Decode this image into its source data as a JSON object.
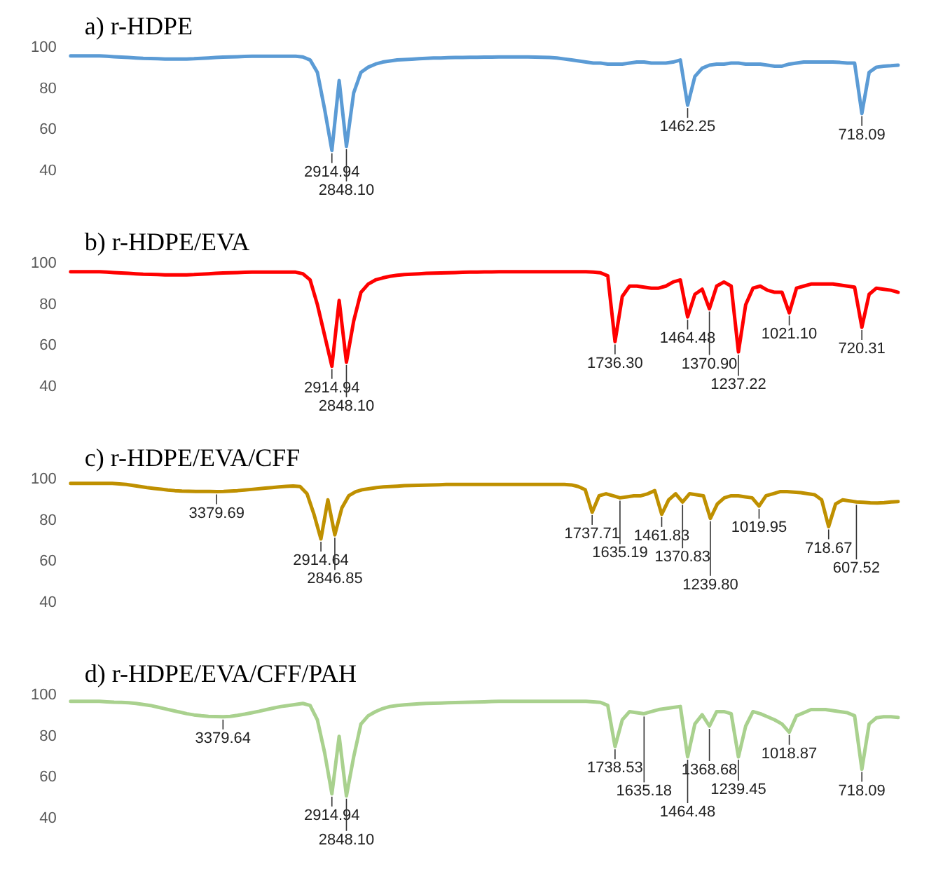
{
  "chart_data": [
    {
      "type": "line",
      "title": "a) r-HDPE",
      "ylim": [
        40,
        100
      ],
      "yticks": [
        40,
        60,
        80,
        100
      ],
      "tick_labels": "y",
      "categories": [
        null,
        null,
        null,
        null,
        null,
        null,
        null,
        null,
        null,
        null,
        null,
        null,
        null,
        null,
        null,
        null,
        null,
        null,
        null,
        null,
        null,
        null,
        null,
        null,
        null,
        null,
        null,
        null,
        null,
        null,
        null,
        null,
        null,
        null,
        null,
        null,
        null,
        null,
        null,
        null,
        null,
        null,
        null,
        null,
        null,
        null,
        null,
        null,
        null,
        null,
        null,
        null,
        null,
        null,
        null,
        null,
        null,
        null,
        null,
        null,
        null,
        null,
        null,
        null,
        null,
        null,
        null,
        null,
        null,
        null,
        null,
        null,
        null,
        null,
        null,
        null,
        null,
        null,
        null,
        null,
        null,
        null,
        null,
        null,
        null,
        null,
        null,
        null,
        null,
        null,
        null,
        null,
        null,
        null,
        null,
        null,
        null,
        null,
        null,
        null,
        null,
        null,
        null,
        null,
        null,
        null,
        null,
        null,
        null,
        null,
        null,
        null,
        null,
        null,
        null
      ],
      "series": [
        {
          "color": "#5b9bd5",
          "values": [
            96,
            96,
            96,
            96,
            96,
            95.8,
            95.6,
            95.4,
            95.2,
            95,
            94.8,
            94.7,
            94.6,
            94.5,
            94.5,
            94.5,
            94.5,
            94.6,
            94.8,
            95,
            95.2,
            95.4,
            95.5,
            95.6,
            95.7,
            95.8,
            95.8,
            95.8,
            95.8,
            95.8,
            95.8,
            95.8,
            95.5,
            94,
            88,
            70,
            50,
            84,
            52,
            78,
            88,
            90.5,
            92,
            93,
            93.5,
            94,
            94.2,
            94.4,
            94.6,
            94.8,
            95,
            95,
            95.1,
            95.2,
            95.2,
            95.3,
            95.3,
            95.4,
            95.4,
            95.5,
            95.5,
            95.5,
            95.5,
            95.5,
            95.4,
            95.3,
            95.2,
            95,
            94.5,
            94,
            93.5,
            93,
            92.5,
            92.5,
            92,
            92,
            92,
            92.5,
            93,
            93,
            92.5,
            92.5,
            92.5,
            93,
            94,
            72,
            86,
            90,
            91.5,
            92,
            92,
            92.5,
            92.5,
            92,
            92,
            92,
            91.5,
            91,
            91,
            92,
            92.5,
            93,
            93,
            93,
            93,
            93,
            92.8,
            92.5,
            92.5,
            68,
            88,
            90.5,
            91,
            91.2,
            91.5
          ]
        }
      ],
      "annotations": [
        {
          "text": "2914.94",
          "y": 50
        },
        {
          "text": "2848.10",
          "y": 52
        },
        {
          "text": "1462.25",
          "y": 72
        },
        {
          "text": "718.09",
          "y": 68
        }
      ]
    },
    {
      "type": "line",
      "title": "b) r-HDPE/EVA",
      "ylim": [
        40,
        100
      ],
      "yticks": [
        40,
        60,
        80,
        100
      ],
      "tick_labels": "y",
      "categories": [
        null,
        null,
        null,
        null,
        null,
        null,
        null,
        null,
        null,
        null,
        null,
        null,
        null,
        null,
        null,
        null,
        null,
        null,
        null,
        null,
        null,
        null,
        null,
        null,
        null,
        null,
        null,
        null,
        null,
        null,
        null,
        null,
        null,
        null,
        null,
        null,
        null,
        null,
        null,
        null,
        null,
        null,
        null,
        null,
        null,
        null,
        null,
        null,
        null,
        null,
        null,
        null,
        null,
        null,
        null,
        null,
        null,
        null,
        null,
        null,
        null,
        null,
        null,
        null,
        null,
        null,
        null,
        null,
        null,
        null,
        null,
        null,
        null,
        null,
        null,
        null,
        null,
        null,
        null,
        null,
        null,
        null,
        null,
        null,
        null,
        null,
        null,
        null,
        null,
        null,
        null,
        null,
        null,
        null,
        null,
        null,
        null,
        null,
        null,
        null,
        null,
        null,
        null,
        null,
        null,
        null,
        null,
        null,
        null,
        null,
        null,
        null,
        null,
        null,
        null
      ],
      "series": [
        {
          "color": "#ff0000",
          "values": [
            96,
            96,
            96,
            96,
            96,
            95.8,
            95.6,
            95.4,
            95.2,
            95,
            94.8,
            94.7,
            94.6,
            94.5,
            94.5,
            94.5,
            94.5,
            94.6,
            94.8,
            95,
            95.2,
            95.4,
            95.5,
            95.6,
            95.7,
            95.8,
            95.8,
            95.8,
            95.8,
            95.8,
            95.8,
            95.8,
            95,
            92,
            80,
            65,
            50,
            82,
            52,
            72,
            86,
            90,
            92,
            93,
            93.8,
            94.3,
            94.6,
            94.8,
            95,
            95.2,
            95.3,
            95.4,
            95.5,
            95.6,
            95.7,
            95.8,
            95.8,
            95.9,
            95.9,
            96,
            96,
            96,
            96,
            96,
            96,
            96,
            96,
            96,
            96,
            96,
            96,
            96,
            95.8,
            95.5,
            94,
            62,
            84,
            89,
            89,
            88.5,
            88,
            88,
            89,
            91,
            92,
            74,
            85,
            87.5,
            78,
            89,
            91,
            89,
            57,
            80,
            88,
            89,
            87,
            86,
            86,
            76,
            88,
            89,
            90,
            90,
            90,
            90,
            89.5,
            89,
            88.5,
            69,
            85,
            88,
            87.5,
            87,
            86
          ]
        }
      ],
      "annotations": [
        {
          "text": "2914.94",
          "y": 50
        },
        {
          "text": "2848.10",
          "y": 52
        },
        {
          "text": "1736.30",
          "y": 62
        },
        {
          "text": "1464.48",
          "y": 74
        },
        {
          "text": "1370.90",
          "y": 78
        },
        {
          "text": "1237.22",
          "y": 57
        },
        {
          "text": "1021.10",
          "y": 76
        },
        {
          "text": "720.31",
          "y": 69
        }
      ]
    },
    {
      "type": "line",
      "title": "c) r-HDPE/EVA/CFF",
      "ylim": [
        40,
        100
      ],
      "yticks": [
        40,
        60,
        80,
        100
      ],
      "tick_labels": "y",
      "categories": [
        null,
        null,
        null,
        null,
        null,
        null,
        null,
        null,
        null,
        null,
        null,
        null,
        null,
        null,
        null,
        null,
        null,
        null,
        null,
        null,
        null,
        null,
        null,
        null,
        null,
        null,
        null,
        null,
        null,
        null,
        null,
        null,
        null,
        null,
        null,
        null,
        null,
        null,
        null,
        null,
        null,
        null,
        null,
        null,
        null,
        null,
        null,
        null,
        null,
        null,
        null,
        null,
        null,
        null,
        null,
        null,
        null,
        null,
        null,
        null,
        null,
        null,
        null,
        null,
        null,
        null,
        null,
        null,
        null,
        null,
        null,
        null,
        null,
        null,
        null,
        null,
        null,
        null,
        null,
        null,
        null,
        null,
        null,
        null,
        null,
        null,
        null,
        null,
        null,
        null,
        null,
        null,
        null,
        null,
        null,
        null,
        null,
        null,
        null,
        null,
        null,
        null,
        null,
        null,
        null,
        null,
        null,
        null,
        null,
        null,
        null,
        null,
        null,
        null,
        null,
        null,
        null,
        null,
        null,
        null
      ],
      "series": [
        {
          "color": "#bf9000",
          "values": [
            98,
            98,
            98,
            98,
            98,
            98,
            98,
            97.8,
            97.5,
            97,
            96.5,
            96,
            95.6,
            95.2,
            94.8,
            94.5,
            94.3,
            94.2,
            94.1,
            94.1,
            94.1,
            94,
            94.1,
            94.3,
            94.5,
            94.8,
            95.1,
            95.4,
            95.7,
            96,
            96.3,
            96.6,
            96.8,
            96.5,
            93,
            83,
            71,
            90,
            73,
            86,
            92,
            94,
            95,
            95.5,
            96,
            96.3,
            96.5,
            96.7,
            96.9,
            97,
            97.1,
            97.2,
            97.3,
            97.4,
            97.5,
            97.5,
            97.5,
            97.5,
            97.5,
            97.5,
            97.5,
            97.5,
            97.5,
            97.5,
            97.5,
            97.5,
            97.5,
            97.5,
            97.5,
            97.5,
            97.5,
            97.5,
            97.3,
            96.5,
            95,
            84,
            92,
            93,
            92,
            91,
            91.5,
            92,
            92,
            93,
            94.5,
            83,
            90,
            93,
            89,
            93,
            92.5,
            92,
            81,
            88,
            91,
            92,
            92,
            91.5,
            91,
            87,
            92,
            93,
            94,
            94,
            93.8,
            93.5,
            93,
            92.5,
            90,
            77,
            88,
            90,
            89.5,
            89,
            88.8,
            88.6,
            88.5,
            88.7,
            89,
            89.2
          ]
        }
      ],
      "annotations": [
        {
          "text": "3379.69",
          "y": 94
        },
        {
          "text": "2914.64",
          "y": 71
        },
        {
          "text": "2846.85",
          "y": 73
        },
        {
          "text": "1737.71",
          "y": 84
        },
        {
          "text": "1635.19",
          "y": 91
        },
        {
          "text": "1461.83",
          "y": 83
        },
        {
          "text": "1370.83",
          "y": 89
        },
        {
          "text": "1239.80",
          "y": 81
        },
        {
          "text": "1019.95",
          "y": 87
        },
        {
          "text": "718.67",
          "y": 77
        },
        {
          "text": "607.52",
          "y": 89
        }
      ]
    },
    {
      "type": "line",
      "title": "d) r-HDPE/EVA/CFF/PAH",
      "ylim": [
        40,
        100
      ],
      "yticks": [
        40,
        60,
        80,
        100
      ],
      "tick_labels": "y",
      "categories": [
        null,
        null,
        null,
        null,
        null,
        null,
        null,
        null,
        null,
        null,
        null,
        null,
        null,
        null,
        null,
        null,
        null,
        null,
        null,
        null,
        null,
        null,
        null,
        null,
        null,
        null,
        null,
        null,
        null,
        null,
        null,
        null,
        null,
        null,
        null,
        null,
        null,
        null,
        null,
        null,
        null,
        null,
        null,
        null,
        null,
        null,
        null,
        null,
        null,
        null,
        null,
        null,
        null,
        null,
        null,
        null,
        null,
        null,
        null,
        null,
        null,
        null,
        null,
        null,
        null,
        null,
        null,
        null,
        null,
        null,
        null,
        null,
        null,
        null,
        null,
        null,
        null,
        null,
        null,
        null,
        null,
        null,
        null,
        null,
        null,
        null,
        null,
        null,
        null,
        null,
        null,
        null,
        null,
        null,
        null,
        null,
        null,
        null,
        null,
        null,
        null,
        null,
        null,
        null,
        null,
        null,
        null,
        null,
        null,
        null,
        null,
        null,
        null,
        null,
        null
      ],
      "series": [
        {
          "color": "#a9d18e",
          "values": [
            97,
            97,
            97,
            97,
            97,
            96.8,
            96.6,
            96.5,
            96.3,
            96,
            95.5,
            95,
            94.2,
            93.4,
            92.6,
            91.8,
            91,
            90.4,
            90,
            89.7,
            89.6,
            89.5,
            89.7,
            90.2,
            90.8,
            91.5,
            92.2,
            93,
            93.8,
            94.5,
            95,
            95.5,
            96,
            95,
            88,
            72,
            52,
            80,
            51,
            70,
            86,
            90,
            92,
            93.5,
            94.5,
            95,
            95.3,
            95.6,
            95.8,
            96,
            96.1,
            96.2,
            96.3,
            96.4,
            96.5,
            96.6,
            96.7,
            96.8,
            96.9,
            97,
            97,
            97,
            97,
            97,
            97,
            97,
            97,
            97,
            97,
            97,
            97,
            97,
            96.8,
            96.5,
            95,
            75,
            88,
            92,
            91.5,
            91,
            92,
            93,
            93.5,
            94,
            94.5,
            70,
            86,
            90.5,
            85,
            92,
            92,
            91,
            70,
            85,
            92,
            91,
            89.5,
            88,
            86,
            82,
            90,
            91.5,
            93,
            93,
            93,
            92.5,
            92,
            91.5,
            90,
            64,
            86,
            89,
            89.5,
            89.5,
            89.2
          ]
        }
      ],
      "annotations": [
        {
          "text": "3379.64",
          "y": 89.5
        },
        {
          "text": "2914.94",
          "y": 52
        },
        {
          "text": "2848.10",
          "y": 51
        },
        {
          "text": "1738.53",
          "y": 75
        },
        {
          "text": "1635.18",
          "y": 91
        },
        {
          "text": "1464.48",
          "y": 70
        },
        {
          "text": "1368.68",
          "y": 85
        },
        {
          "text": "1239.45",
          "y": 70
        },
        {
          "text": "1018.87",
          "y": 82
        },
        {
          "text": "718.09",
          "y": 64
        }
      ]
    }
  ]
}
